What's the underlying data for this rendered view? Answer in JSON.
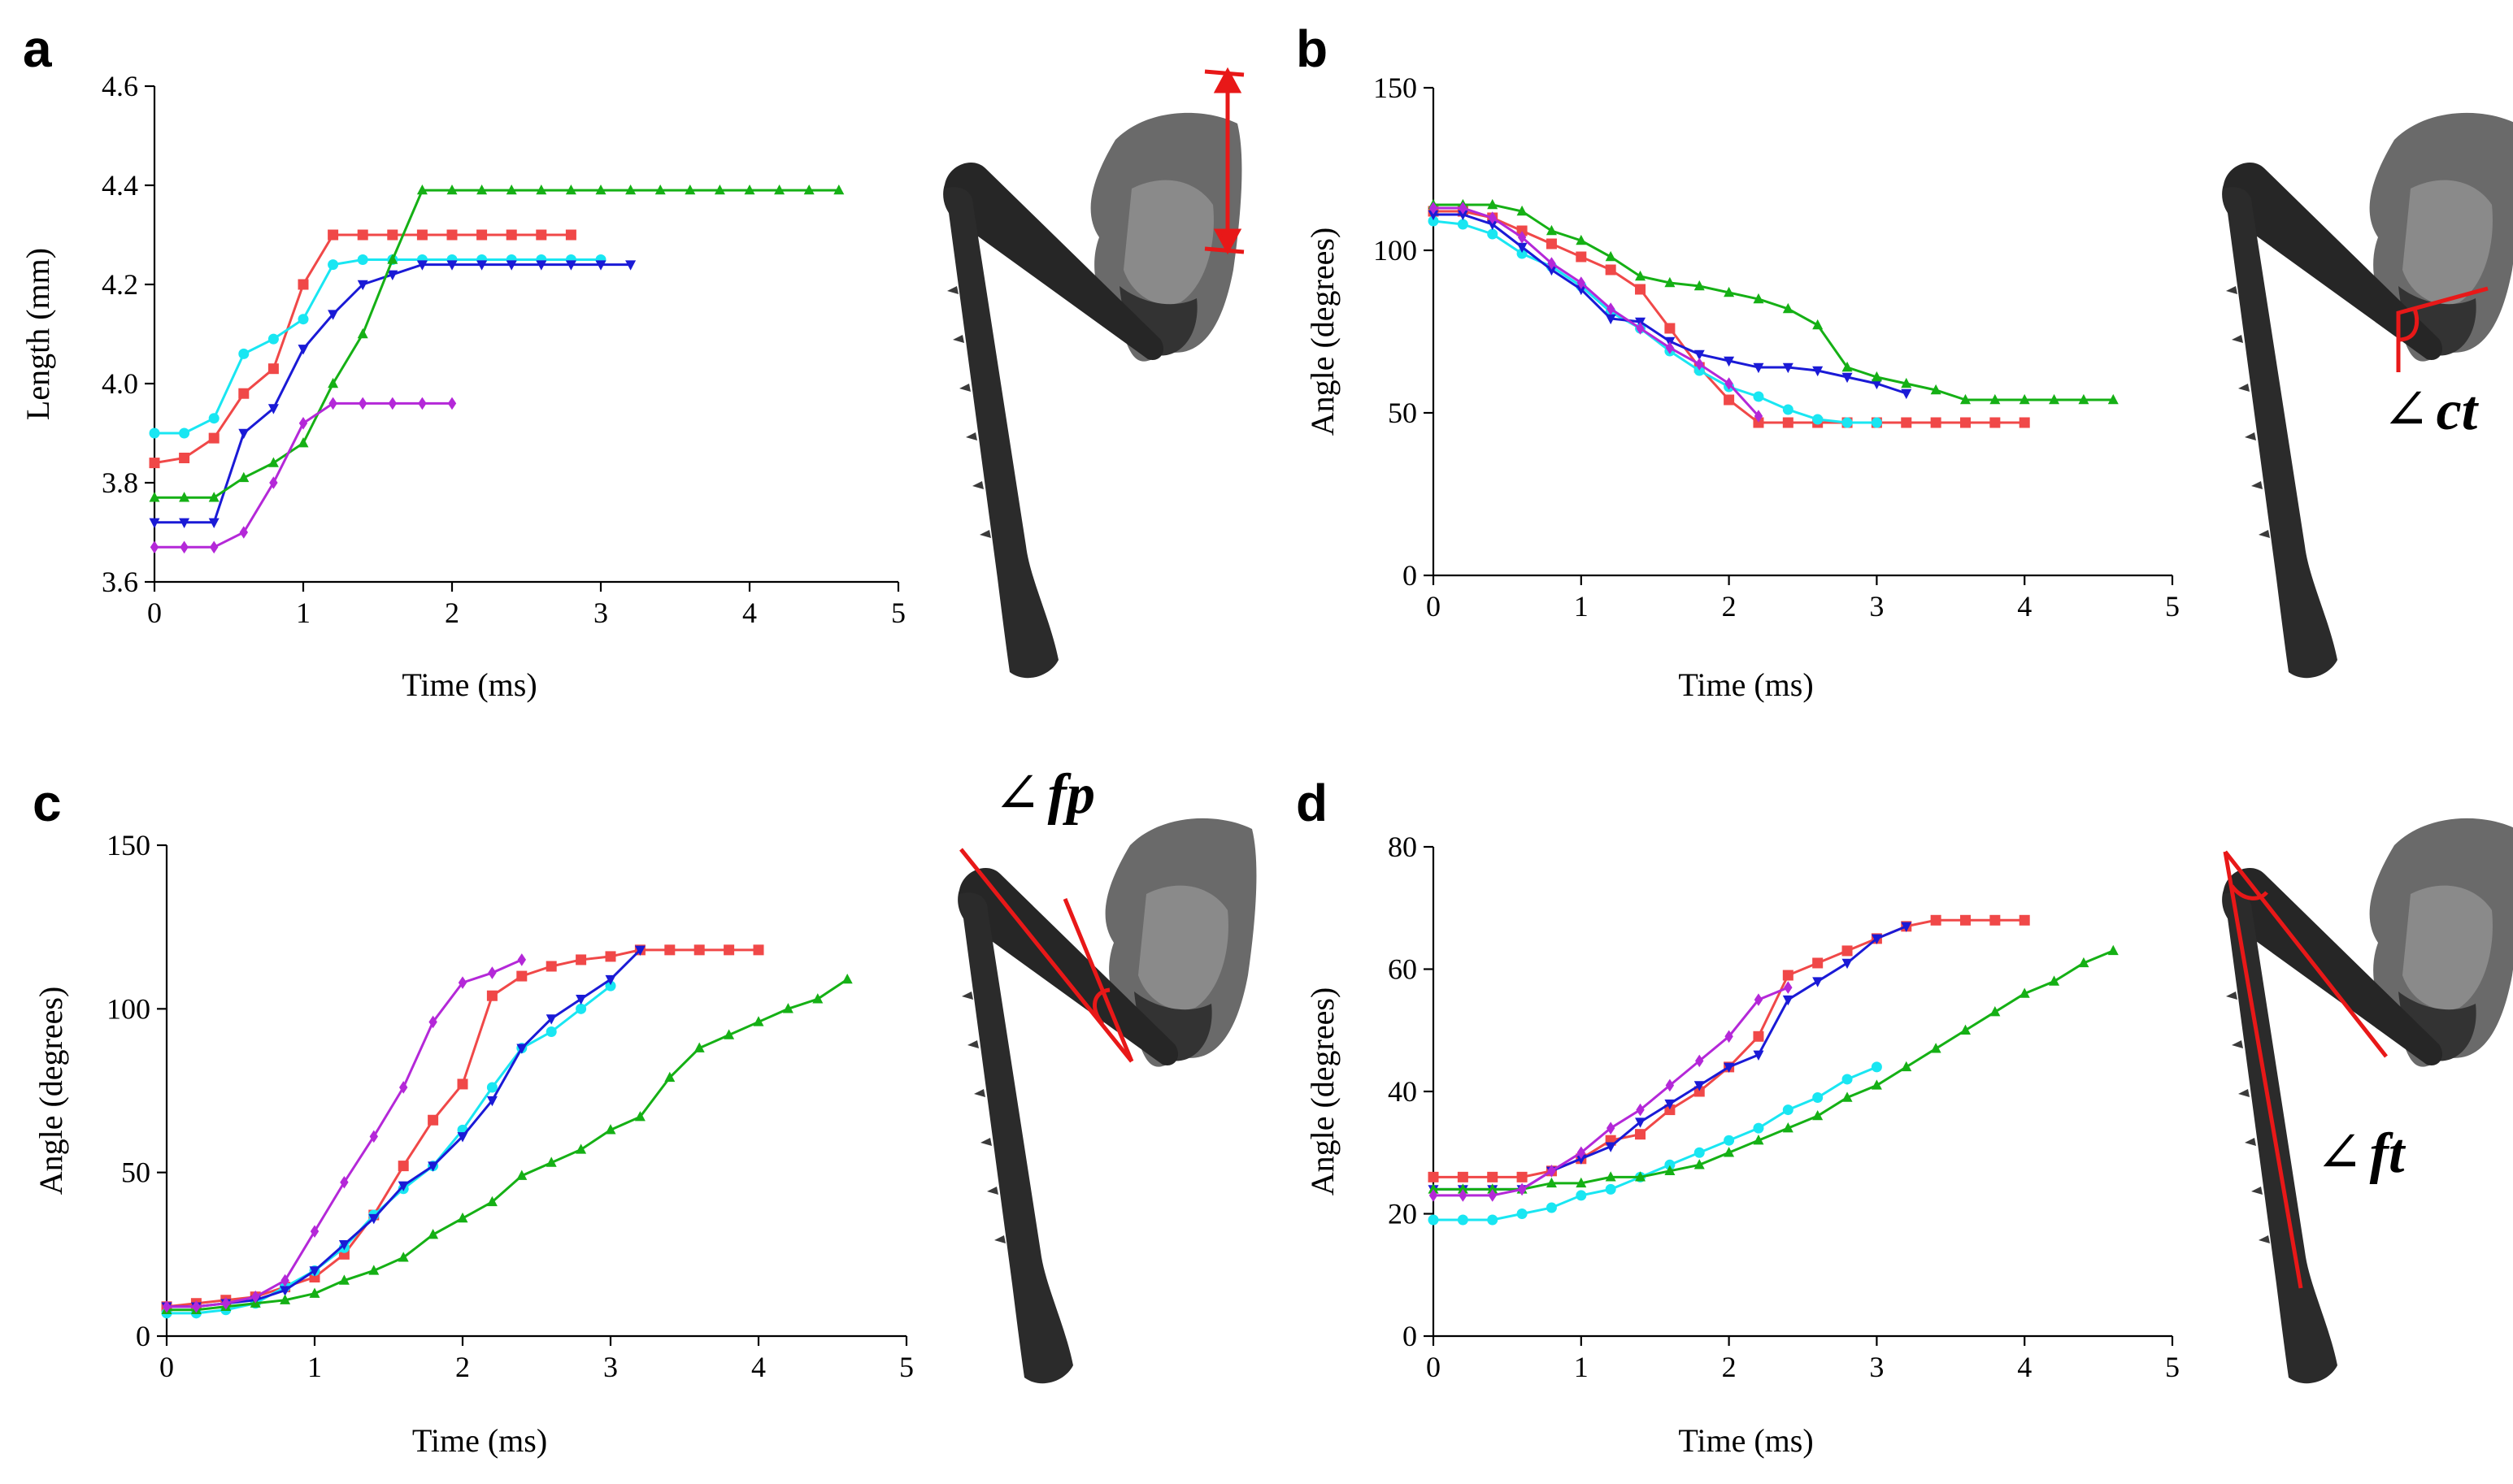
{
  "colors": {
    "red": "#f04848",
    "cyan": "#19e6f2",
    "blue": "#1a1ad6",
    "green": "#15b015",
    "magenta": "#b428d8",
    "annotation": "#e81818",
    "specimen": "#2a2a2a"
  },
  "icons": {
    "specimen_image": "insect-hindleg-xray-image"
  },
  "chart_data": [
    {
      "panel": "a",
      "type": "line",
      "title": "",
      "xlabel": "Time (ms)",
      "ylabel": "Length (mm)",
      "xlim": [
        0,
        5
      ],
      "ylim": [
        3.6,
        4.6
      ],
      "xticks": [
        "0",
        "1",
        "2",
        "3",
        "4",
        "5"
      ],
      "yticks": [
        "3.6",
        "3.8",
        "4.0",
        "4.2",
        "4.4",
        "4.6"
      ],
      "series": [
        {
          "name": "red",
          "color": "red",
          "marker": "square",
          "x": [
            0,
            0.2,
            0.4,
            0.6,
            0.8,
            1.0,
            1.2,
            1.4,
            1.6,
            1.8,
            2.0,
            2.2,
            2.4,
            2.6,
            2.8
          ],
          "y": [
            3.84,
            3.85,
            3.89,
            3.98,
            4.03,
            4.2,
            4.3,
            4.3,
            4.3,
            4.3,
            4.3,
            4.3,
            4.3,
            4.3,
            4.3
          ]
        },
        {
          "name": "cyan",
          "color": "cyan",
          "marker": "circle",
          "x": [
            0,
            0.2,
            0.4,
            0.6,
            0.8,
            1.0,
            1.2,
            1.4,
            1.6,
            1.8,
            2.0,
            2.2,
            2.4,
            2.6,
            2.8,
            3.0
          ],
          "y": [
            3.9,
            3.9,
            3.93,
            4.06,
            4.09,
            4.13,
            4.24,
            4.25,
            4.25,
            4.25,
            4.25,
            4.25,
            4.25,
            4.25,
            4.25,
            4.25
          ]
        },
        {
          "name": "blue",
          "color": "blue",
          "marker": "triangle-down",
          "x": [
            0,
            0.2,
            0.4,
            0.6,
            0.8,
            1.0,
            1.2,
            1.4,
            1.6,
            1.8,
            2.0,
            2.2,
            2.4,
            2.6,
            2.8,
            3.0,
            3.2
          ],
          "y": [
            3.72,
            3.72,
            3.72,
            3.9,
            3.95,
            4.07,
            4.14,
            4.2,
            4.22,
            4.24,
            4.24,
            4.24,
            4.24,
            4.24,
            4.24,
            4.24,
            4.24
          ]
        },
        {
          "name": "green",
          "color": "green",
          "marker": "triangle-up",
          "x": [
            0,
            0.2,
            0.4,
            0.6,
            0.8,
            1.0,
            1.2,
            1.4,
            1.6,
            1.8,
            2.0,
            2.2,
            2.4,
            2.6,
            2.8,
            3.0,
            3.2,
            3.4,
            3.6,
            3.8,
            4.0,
            4.2,
            4.4,
            4.6
          ],
          "y": [
            3.77,
            3.77,
            3.77,
            3.81,
            3.84,
            3.88,
            4.0,
            4.1,
            4.25,
            4.39,
            4.39,
            4.39,
            4.39,
            4.39,
            4.39,
            4.39,
            4.39,
            4.39,
            4.39,
            4.39,
            4.39,
            4.39,
            4.39,
            4.39
          ]
        },
        {
          "name": "magenta",
          "color": "magenta",
          "marker": "diamond",
          "x": [
            0,
            0.2,
            0.4,
            0.6,
            0.8,
            1.0,
            1.2,
            1.4,
            1.6,
            1.8,
            2.0
          ],
          "y": [
            3.67,
            3.67,
            3.67,
            3.7,
            3.8,
            3.92,
            3.96,
            3.96,
            3.96,
            3.96,
            3.96
          ]
        }
      ]
    },
    {
      "panel": "b",
      "type": "line",
      "title": "",
      "xlabel": "Time (ms)",
      "ylabel": "Angle (degrees)",
      "xlim": [
        0,
        5
      ],
      "ylim": [
        0,
        150
      ],
      "xticks": [
        "0",
        "1",
        "2",
        "3",
        "4",
        "5"
      ],
      "yticks": [
        "0",
        "50",
        "100",
        "150"
      ],
      "annotation": {
        "prefix": "∠",
        "label": "ct"
      },
      "series": [
        {
          "name": "red",
          "color": "red",
          "marker": "square",
          "x": [
            0,
            0.2,
            0.4,
            0.6,
            0.8,
            1.0,
            1.2,
            1.4,
            1.6,
            1.8,
            2.0,
            2.2,
            2.4,
            2.6,
            2.8,
            3.0,
            3.2,
            3.4,
            3.6,
            3.8,
            4.0
          ],
          "y": [
            112,
            112,
            110,
            106,
            102,
            98,
            94,
            88,
            76,
            64,
            54,
            47,
            47,
            47,
            47,
            47,
            47,
            47,
            47,
            47,
            47
          ]
        },
        {
          "name": "cyan",
          "color": "cyan",
          "marker": "circle",
          "x": [
            0,
            0.2,
            0.4,
            0.6,
            0.8,
            1.0,
            1.2,
            1.4,
            1.6,
            1.8,
            2.0,
            2.2,
            2.4,
            2.6,
            2.8,
            3.0
          ],
          "y": [
            109,
            108,
            105,
            99,
            95,
            89,
            81,
            76,
            69,
            63,
            58,
            55,
            51,
            48,
            47,
            47
          ]
        },
        {
          "name": "blue",
          "color": "blue",
          "marker": "triangle-down",
          "x": [
            0,
            0.2,
            0.4,
            0.6,
            0.8,
            1.0,
            1.2,
            1.4,
            1.6,
            1.8,
            2.0,
            2.2,
            2.4,
            2.6,
            2.8,
            3.0,
            3.2
          ],
          "y": [
            111,
            111,
            108,
            101,
            94,
            88,
            79,
            78,
            72,
            68,
            66,
            64,
            64,
            63,
            61,
            59,
            56
          ]
        },
        {
          "name": "green",
          "color": "green",
          "marker": "triangle-up",
          "x": [
            0,
            0.2,
            0.4,
            0.6,
            0.8,
            1.0,
            1.2,
            1.4,
            1.6,
            1.8,
            2.0,
            2.2,
            2.4,
            2.6,
            2.8,
            3.0,
            3.2,
            3.4,
            3.6,
            3.8,
            4.0,
            4.2,
            4.4,
            4.6
          ],
          "y": [
            114,
            114,
            114,
            112,
            106,
            103,
            98,
            92,
            90,
            89,
            87,
            85,
            82,
            77,
            64,
            61,
            59,
            57,
            54,
            54,
            54,
            54,
            54,
            54
          ]
        },
        {
          "name": "magenta",
          "color": "magenta",
          "marker": "diamond",
          "x": [
            0,
            0.2,
            0.4,
            0.6,
            0.8,
            1.0,
            1.2,
            1.4,
            1.6,
            1.8,
            2.0,
            2.2
          ],
          "y": [
            113,
            113,
            110,
            104,
            96,
            90,
            82,
            76,
            70,
            65,
            59,
            49
          ]
        }
      ]
    },
    {
      "panel": "c",
      "type": "line",
      "title": "",
      "xlabel": "Time (ms)",
      "ylabel": "Angle (degrees)",
      "xlim": [
        0,
        5
      ],
      "ylim": [
        0,
        150
      ],
      "xticks": [
        "0",
        "1",
        "2",
        "3",
        "4",
        "5"
      ],
      "yticks": [
        "0",
        "50",
        "100",
        "150"
      ],
      "annotation": {
        "prefix": "∠",
        "label": "fp"
      },
      "series": [
        {
          "name": "red",
          "color": "red",
          "marker": "square",
          "x": [
            0,
            0.2,
            0.4,
            0.6,
            0.8,
            1.0,
            1.2,
            1.4,
            1.6,
            1.8,
            2.0,
            2.2,
            2.4,
            2.6,
            2.8,
            3.0,
            3.2,
            3.4,
            3.6,
            3.8,
            4.0
          ],
          "y": [
            9,
            10,
            11,
            12,
            15,
            18,
            25,
            37,
            52,
            66,
            77,
            104,
            110,
            113,
            115,
            116,
            118,
            118,
            118,
            118,
            118
          ]
        },
        {
          "name": "cyan",
          "color": "cyan",
          "marker": "circle",
          "x": [
            0,
            0.2,
            0.4,
            0.6,
            0.8,
            1.0,
            1.2,
            1.4,
            1.6,
            1.8,
            2.0,
            2.2,
            2.4,
            2.6,
            2.8,
            3.0
          ],
          "y": [
            7,
            7,
            8,
            10,
            15,
            20,
            27,
            37,
            45,
            52,
            63,
            76,
            88,
            93,
            100,
            107
          ]
        },
        {
          "name": "blue",
          "color": "blue",
          "marker": "triangle-down",
          "x": [
            0,
            0.2,
            0.4,
            0.6,
            0.8,
            1.0,
            1.2,
            1.4,
            1.6,
            1.8,
            2.0,
            2.2,
            2.4,
            2.6,
            2.8,
            3.0,
            3.2
          ],
          "y": [
            9,
            9,
            10,
            11,
            14,
            20,
            28,
            36,
            46,
            52,
            61,
            72,
            88,
            97,
            103,
            109,
            118
          ]
        },
        {
          "name": "green",
          "color": "green",
          "marker": "triangle-up",
          "x": [
            0,
            0.2,
            0.4,
            0.6,
            0.8,
            1.0,
            1.2,
            1.4,
            1.6,
            1.8,
            2.0,
            2.2,
            2.4,
            2.6,
            2.8,
            3.0,
            3.2,
            3.4,
            3.6,
            3.8,
            4.0,
            4.2,
            4.4,
            4.6
          ],
          "y": [
            8,
            8,
            9,
            10,
            11,
            13,
            17,
            20,
            24,
            31,
            36,
            41,
            49,
            53,
            57,
            63,
            67,
            79,
            88,
            92,
            96,
            100,
            103,
            109
          ]
        },
        {
          "name": "magenta",
          "color": "magenta",
          "marker": "diamond",
          "x": [
            0,
            0.2,
            0.4,
            0.6,
            0.8,
            1.0,
            1.2,
            1.4,
            1.6,
            1.8,
            2.0,
            2.2,
            2.4
          ],
          "y": [
            9,
            9,
            10,
            12,
            17,
            32,
            47,
            61,
            76,
            96,
            108,
            111,
            115
          ]
        }
      ]
    },
    {
      "panel": "d",
      "type": "line",
      "title": "",
      "xlabel": "Time (ms)",
      "ylabel": "Angle (degrees)",
      "xlim": [
        0,
        5
      ],
      "ylim": [
        0,
        80
      ],
      "xticks": [
        "0",
        "1",
        "2",
        "3",
        "4",
        "5"
      ],
      "yticks": [
        "0",
        "20",
        "40",
        "60",
        "80"
      ],
      "annotation": {
        "prefix": "∠",
        "label": "ft"
      },
      "series": [
        {
          "name": "red",
          "color": "red",
          "marker": "square",
          "x": [
            0,
            0.2,
            0.4,
            0.6,
            0.8,
            1.0,
            1.2,
            1.4,
            1.6,
            1.8,
            2.0,
            2.2,
            2.4,
            2.6,
            2.8,
            3.0,
            3.2,
            3.4,
            3.6,
            3.8,
            4.0
          ],
          "y": [
            26,
            26,
            26,
            26,
            27,
            29,
            32,
            33,
            37,
            40,
            44,
            49,
            59,
            61,
            63,
            65,
            67,
            68,
            68,
            68,
            68
          ]
        },
        {
          "name": "cyan",
          "color": "cyan",
          "marker": "circle",
          "x": [
            0,
            0.2,
            0.4,
            0.6,
            0.8,
            1.0,
            1.2,
            1.4,
            1.6,
            1.8,
            2.0,
            2.2,
            2.4,
            2.6,
            2.8,
            3.0
          ],
          "y": [
            19,
            19,
            19,
            20,
            21,
            23,
            24,
            26,
            28,
            30,
            32,
            34,
            37,
            39,
            42,
            44
          ]
        },
        {
          "name": "blue",
          "color": "blue",
          "marker": "triangle-down",
          "x": [
            0,
            0.2,
            0.4,
            0.6,
            0.8,
            1.0,
            1.2,
            1.4,
            1.6,
            1.8,
            2.0,
            2.2,
            2.4,
            2.6,
            2.8,
            3.0,
            3.2
          ],
          "y": [
            24,
            24,
            24,
            24,
            27,
            29,
            31,
            35,
            38,
            41,
            44,
            46,
            55,
            58,
            61,
            65,
            67
          ]
        },
        {
          "name": "green",
          "color": "green",
          "marker": "triangle-up",
          "x": [
            0,
            0.2,
            0.4,
            0.6,
            0.8,
            1.0,
            1.2,
            1.4,
            1.6,
            1.8,
            2.0,
            2.2,
            2.4,
            2.6,
            2.8,
            3.0,
            3.2,
            3.4,
            3.6,
            3.8,
            4.0,
            4.2,
            4.4,
            4.6
          ],
          "y": [
            24,
            24,
            24,
            24,
            25,
            25,
            26,
            26,
            27,
            28,
            30,
            32,
            34,
            36,
            39,
            41,
            44,
            47,
            50,
            53,
            56,
            58,
            61,
            63
          ]
        },
        {
          "name": "magenta",
          "color": "magenta",
          "marker": "diamond",
          "x": [
            0,
            0.2,
            0.4,
            0.6,
            0.8,
            1.0,
            1.2,
            1.4,
            1.6,
            1.8,
            2.0,
            2.2,
            2.4
          ],
          "y": [
            23,
            23,
            23,
            24,
            27,
            30,
            34,
            37,
            41,
            45,
            49,
            55,
            57
          ]
        }
      ]
    }
  ]
}
